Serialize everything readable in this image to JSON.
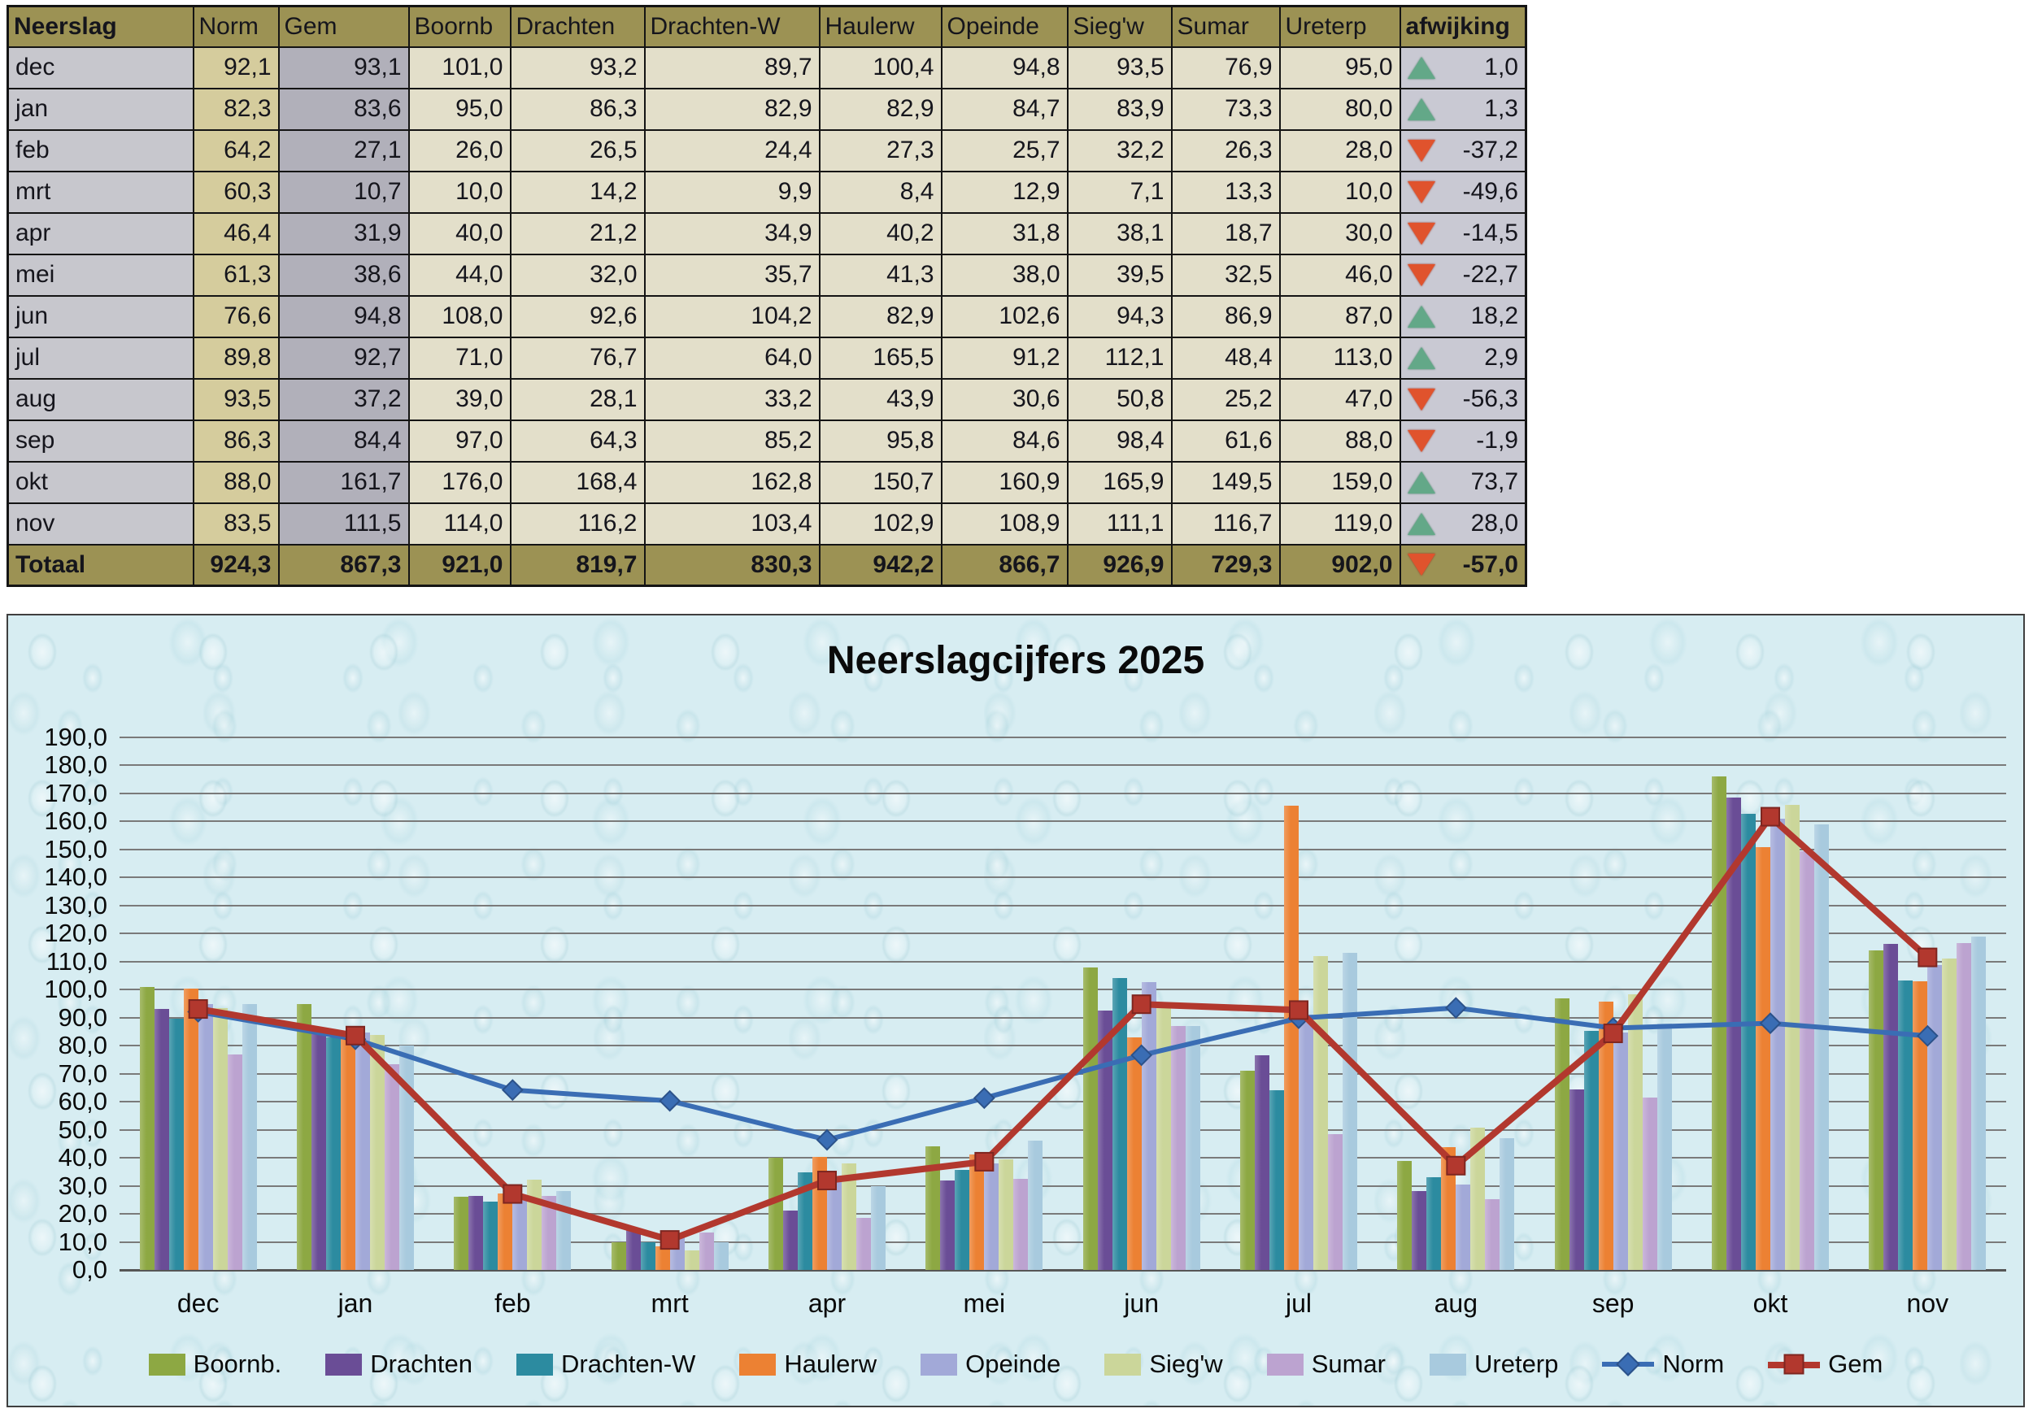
{
  "table": {
    "columns": [
      "Neerslag",
      "Norm",
      "Gem",
      "Boornb",
      "Drachten",
      "Drachten-W",
      "Haulerw",
      "Opeinde",
      "Sieg'w",
      "Sumar",
      "Ureterp",
      "afwijking"
    ],
    "rows": [
      {
        "month": "dec",
        "norm": "92,1",
        "gem": "93,1",
        "stations": [
          "101,0",
          "93,2",
          "89,7",
          "100,4",
          "94,8",
          "93,5",
          "76,9",
          "95,0"
        ],
        "afwijking": "1,0",
        "trend": "up"
      },
      {
        "month": "jan",
        "norm": "82,3",
        "gem": "83,6",
        "stations": [
          "95,0",
          "86,3",
          "82,9",
          "82,9",
          "84,7",
          "83,9",
          "73,3",
          "80,0"
        ],
        "afwijking": "1,3",
        "trend": "up"
      },
      {
        "month": "feb",
        "norm": "64,2",
        "gem": "27,1",
        "stations": [
          "26,0",
          "26,5",
          "24,4",
          "27,3",
          "25,7",
          "32,2",
          "26,3",
          "28,0"
        ],
        "afwijking": "-37,2",
        "trend": "down"
      },
      {
        "month": "mrt",
        "norm": "60,3",
        "gem": "10,7",
        "stations": [
          "10,0",
          "14,2",
          "9,9",
          "8,4",
          "12,9",
          "7,1",
          "13,3",
          "10,0"
        ],
        "afwijking": "-49,6",
        "trend": "down"
      },
      {
        "month": "apr",
        "norm": "46,4",
        "gem": "31,9",
        "stations": [
          "40,0",
          "21,2",
          "34,9",
          "40,2",
          "31,8",
          "38,1",
          "18,7",
          "30,0"
        ],
        "afwijking": "-14,5",
        "trend": "down"
      },
      {
        "month": "mei",
        "norm": "61,3",
        "gem": "38,6",
        "stations": [
          "44,0",
          "32,0",
          "35,7",
          "41,3",
          "38,0",
          "39,5",
          "32,5",
          "46,0"
        ],
        "afwijking": "-22,7",
        "trend": "down"
      },
      {
        "month": "jun",
        "norm": "76,6",
        "gem": "94,8",
        "stations": [
          "108,0",
          "92,6",
          "104,2",
          "82,9",
          "102,6",
          "94,3",
          "86,9",
          "87,0"
        ],
        "afwijking": "18,2",
        "trend": "up"
      },
      {
        "month": "jul",
        "norm": "89,8",
        "gem": "92,7",
        "stations": [
          "71,0",
          "76,7",
          "64,0",
          "165,5",
          "91,2",
          "112,1",
          "48,4",
          "113,0"
        ],
        "afwijking": "2,9",
        "trend": "up"
      },
      {
        "month": "aug",
        "norm": "93,5",
        "gem": "37,2",
        "stations": [
          "39,0",
          "28,1",
          "33,2",
          "43,9",
          "30,6",
          "50,8",
          "25,2",
          "47,0"
        ],
        "afwijking": "-56,3",
        "trend": "down"
      },
      {
        "month": "sep",
        "norm": "86,3",
        "gem": "84,4",
        "stations": [
          "97,0",
          "64,3",
          "85,2",
          "95,8",
          "84,6",
          "98,4",
          "61,6",
          "88,0"
        ],
        "afwijking": "-1,9",
        "trend": "down"
      },
      {
        "month": "okt",
        "norm": "88,0",
        "gem": "161,7",
        "stations": [
          "176,0",
          "168,4",
          "162,8",
          "150,7",
          "160,9",
          "165,9",
          "149,5",
          "159,0"
        ],
        "afwijking": "73,7",
        "trend": "up"
      },
      {
        "month": "nov",
        "norm": "83,5",
        "gem": "111,5",
        "stations": [
          "114,0",
          "116,2",
          "103,4",
          "102,9",
          "108,9",
          "111,1",
          "116,7",
          "119,0"
        ],
        "afwijking": "28,0",
        "trend": "up"
      }
    ],
    "total_row": {
      "label": "Totaal",
      "norm": "924,3",
      "gem": "867,3",
      "stations": [
        "921,0",
        "819,7",
        "830,3",
        "942,2",
        "866,7",
        "926,9",
        "729,3",
        "902,0"
      ],
      "afwijking": "-57,0",
      "trend": "down"
    },
    "theme": {
      "header_bg": "#9c9254",
      "month_bg": "#c7c7cd",
      "norm_bg": "#d5cc9d",
      "gem_bg": "#b1b0ba",
      "data_bg": "#e3dfca",
      "afwijking_bg": "#c9c9d3",
      "trend_up": "#63a888",
      "trend_down": "#e0532d"
    }
  },
  "chart_data": {
    "type": "bar+line",
    "title": "Neerslagcijfers 2025",
    "categories": [
      "dec",
      "jan",
      "feb",
      "mrt",
      "apr",
      "mei",
      "jun",
      "jul",
      "aug",
      "sep",
      "okt",
      "nov"
    ],
    "bar_series": [
      {
        "name": "Boornb.",
        "color": "#8da843",
        "values": [
          101.0,
          95.0,
          26.0,
          10.0,
          40.0,
          44.0,
          108.0,
          71.0,
          39.0,
          97.0,
          176.0,
          114.0
        ]
      },
      {
        "name": "Drachten",
        "color": "#6a4d96",
        "values": [
          93.2,
          86.3,
          26.5,
          14.2,
          21.2,
          32.0,
          92.6,
          76.7,
          28.1,
          64.3,
          168.4,
          116.2
        ]
      },
      {
        "name": "Drachten-W",
        "color": "#2c8ba0",
        "values": [
          89.7,
          82.9,
          24.4,
          9.9,
          34.9,
          35.7,
          104.2,
          64.0,
          33.2,
          85.2,
          162.8,
          103.4
        ]
      },
      {
        "name": "Haulerw",
        "color": "#ec8133",
        "values": [
          100.4,
          82.9,
          27.3,
          8.4,
          40.2,
          41.3,
          82.9,
          165.5,
          43.9,
          95.8,
          150.7,
          102.9
        ]
      },
      {
        "name": "Opeinde",
        "color": "#a2a9d8",
        "values": [
          94.8,
          84.7,
          25.7,
          12.9,
          31.8,
          38.0,
          102.6,
          91.2,
          30.6,
          84.6,
          160.9,
          108.9
        ]
      },
      {
        "name": "Sieg'w",
        "color": "#cbd69a",
        "values": [
          93.5,
          83.9,
          32.2,
          7.1,
          38.1,
          39.5,
          94.3,
          112.1,
          50.8,
          98.4,
          165.9,
          111.1
        ]
      },
      {
        "name": "Sumar",
        "color": "#bca3d0",
        "values": [
          76.9,
          73.3,
          26.3,
          13.3,
          18.7,
          32.5,
          86.9,
          48.4,
          25.2,
          61.6,
          149.5,
          116.7
        ]
      },
      {
        "name": "Ureterp",
        "color": "#a8cade",
        "values": [
          95.0,
          80.0,
          28.0,
          10.0,
          30.0,
          46.0,
          87.0,
          113.0,
          47.0,
          88.0,
          159.0,
          119.0
        ]
      }
    ],
    "line_series": [
      {
        "name": "Norm",
        "color": "#3a6db4",
        "edge": "#2c528a",
        "marker": "diamond",
        "values": [
          92.1,
          82.3,
          64.2,
          60.3,
          46.4,
          61.3,
          76.6,
          89.8,
          93.5,
          86.3,
          88.0,
          83.5
        ]
      },
      {
        "name": "Gem",
        "color": "#b2382e",
        "edge": "#7e2620",
        "marker": "square",
        "values": [
          93.1,
          83.6,
          27.1,
          10.7,
          31.9,
          38.6,
          94.8,
          92.7,
          37.2,
          84.4,
          161.7,
          111.5
        ]
      }
    ],
    "ylim": [
      0,
      190
    ],
    "y_step": 10,
    "grid": true,
    "legend_position": "bottom",
    "decimal_separator": ","
  }
}
